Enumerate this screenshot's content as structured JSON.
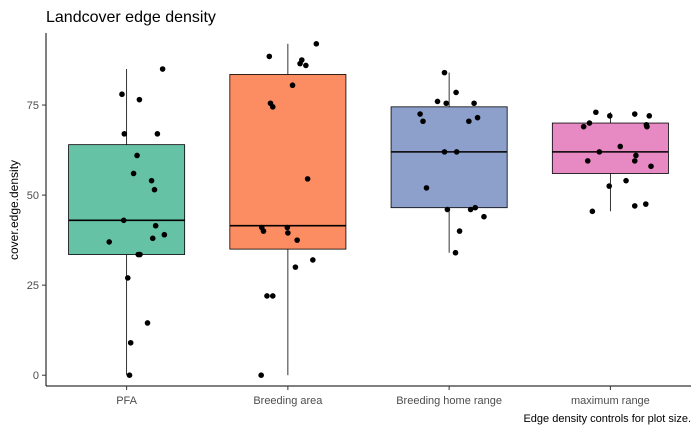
{
  "chart_data": {
    "type": "box",
    "title": "Landcover edge density",
    "xlabel": "",
    "ylabel": "cover.edge.density",
    "caption": "Edge density controls for plot size.",
    "ylim": [
      -3,
      95
    ],
    "yticks": [
      0,
      25,
      50,
      75
    ],
    "categories": [
      "PFA",
      "Breeding area",
      "Breeding home range",
      "maximum range"
    ],
    "colors": [
      "#66C2A5",
      "#FC8D62",
      "#8DA0CB",
      "#E78AC3"
    ],
    "boxes": [
      {
        "category": "PFA",
        "min": 0,
        "q1": 33.5,
        "median": 43,
        "q3": 64,
        "max": 85
      },
      {
        "category": "Breeding area",
        "min": 0,
        "q1": 35,
        "median": 41.5,
        "q3": 83.5,
        "max": 92
      },
      {
        "category": "Breeding home range",
        "min": 34,
        "q1": 46.5,
        "median": 62,
        "q3": 74.5,
        "max": 84
      },
      {
        "category": "maximum range",
        "min": 45.5,
        "q1": 56,
        "median": 62,
        "q3": 70,
        "max": 73
      }
    ],
    "points": [
      {
        "category": "PFA",
        "jitter": -0.3,
        "y": 37
      },
      {
        "category": "PFA",
        "jitter": -0.08,
        "y": 78
      },
      {
        "category": "PFA",
        "jitter": -0.04,
        "y": 67
      },
      {
        "category": "PFA",
        "jitter": 0.02,
        "y": 27
      },
      {
        "category": "PFA",
        "jitter": 0.07,
        "y": 9
      },
      {
        "category": "PFA",
        "jitter": 0.05,
        "y": 0
      },
      {
        "category": "PFA",
        "jitter": -0.05,
        "y": 43
      },
      {
        "category": "PFA",
        "jitter": 0.12,
        "y": 56
      },
      {
        "category": "PFA",
        "jitter": 0.18,
        "y": 61
      },
      {
        "category": "PFA",
        "jitter": 0.2,
        "y": 33.5
      },
      {
        "category": "PFA",
        "jitter": 0.23,
        "y": 33.5
      },
      {
        "category": "PFA",
        "jitter": 0.22,
        "y": 76.5
      },
      {
        "category": "PFA",
        "jitter": 0.36,
        "y": 14.5
      },
      {
        "category": "PFA",
        "jitter": 0.43,
        "y": 54
      },
      {
        "category": "PFA",
        "jitter": 0.45,
        "y": 38
      },
      {
        "category": "PFA",
        "jitter": 0.48,
        "y": 51.5
      },
      {
        "category": "PFA",
        "jitter": 0.5,
        "y": 41.5
      },
      {
        "category": "PFA",
        "jitter": 0.53,
        "y": 67
      },
      {
        "category": "PFA",
        "jitter": 0.62,
        "y": 85
      },
      {
        "category": "PFA",
        "jitter": 0.65,
        "y": 39
      },
      {
        "category": "Breeding area",
        "jitter": -0.46,
        "y": 0
      },
      {
        "category": "Breeding area",
        "jitter": -0.45,
        "y": 41
      },
      {
        "category": "Breeding area",
        "jitter": -0.42,
        "y": 40
      },
      {
        "category": "Breeding area",
        "jitter": -0.36,
        "y": 22
      },
      {
        "category": "Breeding area",
        "jitter": -0.32,
        "y": 88.5
      },
      {
        "category": "Breeding area",
        "jitter": -0.3,
        "y": 75.5
      },
      {
        "category": "Breeding area",
        "jitter": -0.26,
        "y": 74.5
      },
      {
        "category": "Breeding area",
        "jitter": -0.26,
        "y": 22
      },
      {
        "category": "Breeding area",
        "jitter": -0.01,
        "y": 41
      },
      {
        "category": "Breeding area",
        "jitter": 0.0,
        "y": 39.5
      },
      {
        "category": "Breeding area",
        "jitter": 0.08,
        "y": 80.5
      },
      {
        "category": "Breeding area",
        "jitter": 0.13,
        "y": 30
      },
      {
        "category": "Breeding area",
        "jitter": 0.16,
        "y": 37.5
      },
      {
        "category": "Breeding area",
        "jitter": 0.21,
        "y": 86.5
      },
      {
        "category": "Breeding area",
        "jitter": 0.24,
        "y": 87.5
      },
      {
        "category": "Breeding area",
        "jitter": 0.31,
        "y": 86
      },
      {
        "category": "Breeding area",
        "jitter": 0.34,
        "y": 54.5
      },
      {
        "category": "Breeding area",
        "jitter": 0.43,
        "y": 32
      },
      {
        "category": "Breeding area",
        "jitter": 0.49,
        "y": 92
      },
      {
        "category": "Breeding home range",
        "jitter": -0.5,
        "y": 72.5
      },
      {
        "category": "Breeding home range",
        "jitter": -0.45,
        "y": 70.5
      },
      {
        "category": "Breeding home range",
        "jitter": -0.39,
        "y": 52
      },
      {
        "category": "Breeding home range",
        "jitter": -0.2,
        "y": 76
      },
      {
        "category": "Breeding home range",
        "jitter": -0.08,
        "y": 84
      },
      {
        "category": "Breeding home range",
        "jitter": -0.08,
        "y": 62
      },
      {
        "category": "Breeding home range",
        "jitter": -0.05,
        "y": 75.5
      },
      {
        "category": "Breeding home range",
        "jitter": -0.03,
        "y": 46
      },
      {
        "category": "Breeding home range",
        "jitter": 0.11,
        "y": 34
      },
      {
        "category": "Breeding home range",
        "jitter": 0.12,
        "y": 78.5
      },
      {
        "category": "Breeding home range",
        "jitter": 0.13,
        "y": 62
      },
      {
        "category": "Breeding home range",
        "jitter": 0.18,
        "y": 40
      },
      {
        "category": "Breeding home range",
        "jitter": 0.34,
        "y": 70.5
      },
      {
        "category": "Breeding home range",
        "jitter": 0.37,
        "y": 46
      },
      {
        "category": "Breeding home range",
        "jitter": 0.43,
        "y": 75.5
      },
      {
        "category": "Breeding home range",
        "jitter": 0.45,
        "y": 46.5
      },
      {
        "category": "Breeding home range",
        "jitter": 0.49,
        "y": 71.5
      },
      {
        "category": "Breeding home range",
        "jitter": 0.6,
        "y": 44
      },
      {
        "category": "maximum range",
        "jitter": -0.46,
        "y": 69
      },
      {
        "category": "maximum range",
        "jitter": -0.39,
        "y": 59.5
      },
      {
        "category": "maximum range",
        "jitter": -0.36,
        "y": 70
      },
      {
        "category": "maximum range",
        "jitter": -0.31,
        "y": 45.5
      },
      {
        "category": "maximum range",
        "jitter": -0.25,
        "y": 73
      },
      {
        "category": "maximum range",
        "jitter": -0.19,
        "y": 62
      },
      {
        "category": "maximum range",
        "jitter": -0.02,
        "y": 52.5
      },
      {
        "category": "maximum range",
        "jitter": -0.01,
        "y": 72
      },
      {
        "category": "maximum range",
        "jitter": 0.17,
        "y": 63.5
      },
      {
        "category": "maximum range",
        "jitter": 0.27,
        "y": 54
      },
      {
        "category": "maximum range",
        "jitter": 0.42,
        "y": 47
      },
      {
        "category": "maximum range",
        "jitter": 0.42,
        "y": 72.5
      },
      {
        "category": "maximum range",
        "jitter": 0.42,
        "y": 59.5
      },
      {
        "category": "maximum range",
        "jitter": 0.44,
        "y": 61
      },
      {
        "category": "maximum range",
        "jitter": 0.61,
        "y": 47.5
      },
      {
        "category": "maximum range",
        "jitter": 0.62,
        "y": 69.5
      },
      {
        "category": "maximum range",
        "jitter": 0.63,
        "y": 69
      },
      {
        "category": "maximum range",
        "jitter": 0.67,
        "y": 72
      },
      {
        "category": "maximum range",
        "jitter": 0.7,
        "y": 58
      }
    ]
  }
}
